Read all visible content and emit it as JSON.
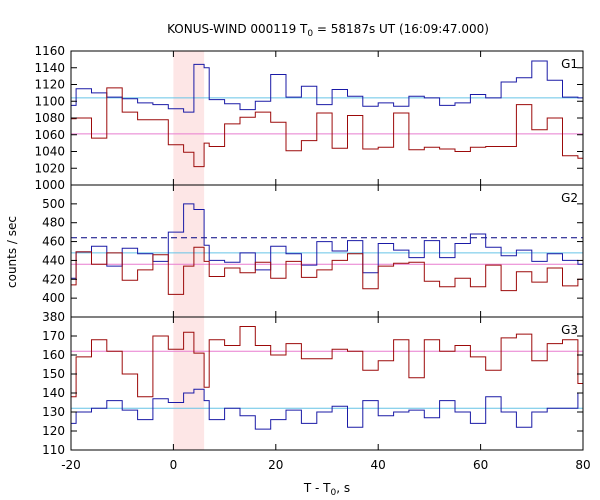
{
  "chart_data": {
    "type": "line",
    "title": "KONUS-WIND 000119 T0 = 58187s UT (16:09:47.000)",
    "title_parts": {
      "before": "KONUS-WIND 000119 T",
      "sub": "0",
      "after": " = 58187s UT (16:09:47.000)"
    },
    "xlabel": "T - T0, s",
    "xlabel_parts": {
      "before": "T - T",
      "sub": "0",
      "after": ", s"
    },
    "ylabel": "counts / sec",
    "xlim": [
      -20,
      80
    ],
    "x_ticks": [
      -20,
      0,
      20,
      40,
      60,
      80
    ],
    "highlight_interval": [
      0,
      6
    ],
    "colors": {
      "blue": "#1a1aa6",
      "red": "#9c0a0a",
      "blue_bg": "#66c4e6",
      "red_bg": "#e87ccf",
      "highlight": "#fde6e6",
      "dashed": "#000080"
    },
    "bin_edges": [
      -20,
      -19,
      -16,
      -13,
      -10,
      -7,
      -4,
      -1,
      2,
      4,
      6,
      7,
      10,
      13,
      16,
      19,
      22,
      25,
      28,
      31,
      34,
      37,
      40,
      43,
      46,
      49,
      52,
      55,
      58,
      61,
      64,
      67,
      70,
      73,
      76,
      79,
      80
    ],
    "panels": [
      {
        "label": "G1",
        "ylim": [
          1000,
          1160
        ],
        "y_ticks": [
          1000,
          1020,
          1040,
          1060,
          1080,
          1100,
          1120,
          1140,
          1160
        ],
        "blue_background": 1104,
        "red_background": 1061,
        "series": [
          {
            "color": "blue",
            "values": [
              1095,
              1115,
              1110,
              1105,
              1103,
              1098,
              1096,
              1091,
              1087,
              1144,
              1140,
              1102,
              1097,
              1090,
              1100,
              1132,
              1105,
              1118,
              1096,
              1114,
              1106,
              1094,
              1098,
              1094,
              1106,
              1104,
              1095,
              1098,
              1108,
              1104,
              1123,
              1128,
              1148,
              1125,
              1105,
              1104
            ]
          },
          {
            "color": "red",
            "values": [
              1079,
              1080,
              1056,
              1116,
              1087,
              1078,
              1078,
              1048,
              1039,
              1022,
              1050,
              1046,
              1073,
              1081,
              1087,
              1075,
              1041,
              1053,
              1086,
              1044,
              1083,
              1043,
              1045,
              1086,
              1042,
              1045,
              1043,
              1040,
              1045,
              1046,
              1046,
              1096,
              1066,
              1080,
              1035,
              1032
            ]
          }
        ]
      },
      {
        "label": "G2",
        "ylim": [
          380,
          520
        ],
        "y_ticks": [
          380,
          400,
          420,
          440,
          460,
          480,
          500
        ],
        "blue_background": 448,
        "red_background": 436,
        "dashed_level": 464,
        "series": [
          {
            "color": "blue",
            "values": [
              421,
              449,
              455,
              434,
              453,
              447,
              439,
              470,
              500,
              494,
              456,
              440,
              438,
              448,
              430,
              455,
              447,
              435,
              460,
              450,
              461,
              427,
              458,
              451,
              443,
              461,
              443,
              458,
              468,
              454,
              445,
              451,
              439,
              447,
              440,
              436
            ]
          },
          {
            "color": "red",
            "values": [
              414,
              449,
              436,
              448,
              419,
              430,
              446,
              404,
              434,
              454,
              439,
              423,
              432,
              427,
              438,
              421,
              439,
              422,
              430,
              440,
              447,
              410,
              434,
              437,
              438,
              418,
              412,
              421,
              412,
              435,
              408,
              428,
              417,
              432,
              413,
              420
            ]
          }
        ]
      },
      {
        "label": "G3",
        "ylim": [
          110,
          180
        ],
        "y_ticks": [
          110,
          120,
          130,
          140,
          150,
          160,
          170
        ],
        "blue_background": 132,
        "red_background": 162,
        "series": [
          {
            "color": "blue",
            "values": [
              124,
              130,
              132,
              136,
              131,
              126,
              137,
              135,
              140,
              142,
              136,
              126,
              132,
              128,
              121,
              126,
              131,
              124,
              130,
              133,
              122,
              136,
              128,
              130,
              131,
              127,
              136,
              130,
              124,
              138,
              130,
              122,
              130,
              132,
              132,
              140
            ]
          },
          {
            "color": "red",
            "values": [
              138,
              159,
              168,
              162,
              150,
              138,
              170,
              163,
              172,
              161,
              143,
              168,
              165,
              175,
              165,
              160,
              166,
              158,
              158,
              163,
              162,
              152,
              157,
              168,
              148,
              168,
              162,
              165,
              159,
              152,
              169,
              171,
              157,
              166,
              168,
              145
            ]
          }
        ]
      }
    ]
  }
}
